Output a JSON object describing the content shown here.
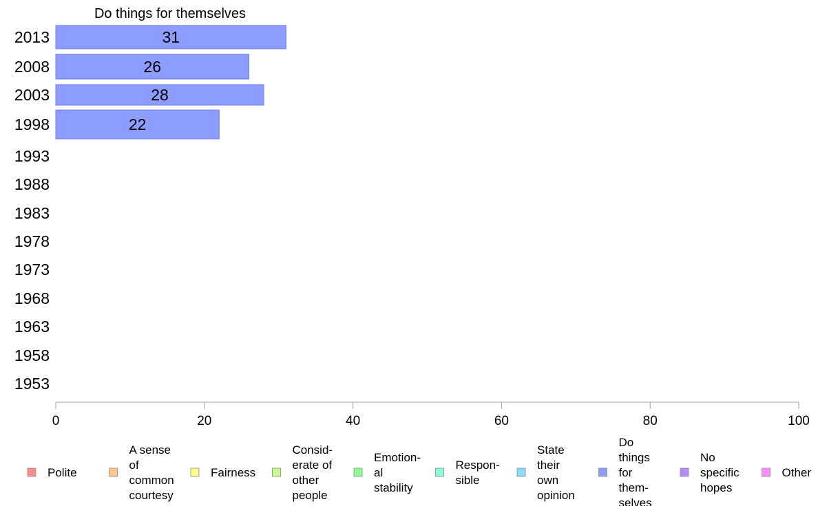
{
  "chart_data": {
    "type": "bar",
    "orientation": "horizontal",
    "title": "Do things for themselves",
    "categories": [
      "2013",
      "2008",
      "2003",
      "1998",
      "1993",
      "1988",
      "1983",
      "1978",
      "1973",
      "1968",
      "1963",
      "1958",
      "1953"
    ],
    "series": [
      {
        "name": "Do things for themselves",
        "values": [
          31,
          26,
          28,
          22,
          null,
          null,
          null,
          null,
          null,
          null,
          null,
          null,
          null
        ],
        "labels": [
          "31",
          "26",
          "28",
          "22"
        ]
      }
    ],
    "xlim": [
      0,
      100
    ],
    "xticks": [
      "0",
      "20",
      "40",
      "60",
      "80",
      "100"
    ],
    "bar_color": "#8c9cff",
    "bar_edge": "#6f7fe0",
    "legend": {
      "position": "bottom",
      "items": [
        {
          "lines": [
            "Polite"
          ],
          "color": "#ff8c8c"
        },
        {
          "lines": [
            "A sense",
            "of",
            "common",
            "courtesy"
          ],
          "color": "#ffc88c"
        },
        {
          "lines": [
            "Fairness"
          ],
          "color": "#ffff8c"
        },
        {
          "lines": [
            "Consid-",
            "erate of",
            "other",
            "people"
          ],
          "color": "#c8ff8c"
        },
        {
          "lines": [
            "Emotion-",
            "al",
            "stability"
          ],
          "color": "#8cff8c"
        },
        {
          "lines": [
            "Respon-",
            "sible"
          ],
          "color": "#8cffdc"
        },
        {
          "lines": [
            "State",
            "their",
            "own",
            "opinion"
          ],
          "color": "#8cdcff"
        },
        {
          "lines": [
            "Do",
            "things",
            "for",
            "them-",
            "selves"
          ],
          "color": "#8c9cff"
        },
        {
          "lines": [
            "No",
            "specific",
            "hopes"
          ],
          "color": "#b48cff"
        },
        {
          "lines": [
            "Other"
          ],
          "color": "#ff8cff"
        }
      ]
    }
  }
}
